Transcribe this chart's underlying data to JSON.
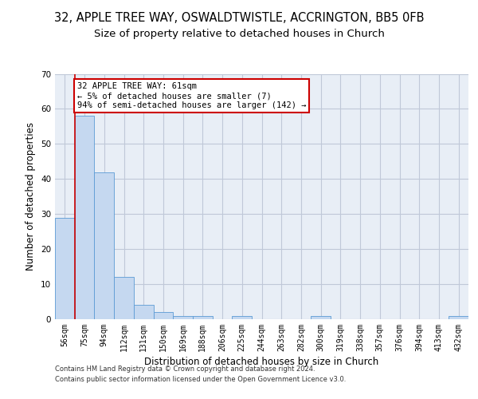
{
  "title1": "32, APPLE TREE WAY, OSWALDTWISTLE, ACCRINGTON, BB5 0FB",
  "title2": "Size of property relative to detached houses in Church",
  "xlabel": "Distribution of detached houses by size in Church",
  "ylabel": "Number of detached properties",
  "categories": [
    "56sqm",
    "75sqm",
    "94sqm",
    "112sqm",
    "131sqm",
    "150sqm",
    "169sqm",
    "188sqm",
    "206sqm",
    "225sqm",
    "244sqm",
    "263sqm",
    "282sqm",
    "300sqm",
    "319sqm",
    "338sqm",
    "357sqm",
    "376sqm",
    "394sqm",
    "413sqm",
    "432sqm"
  ],
  "values": [
    29,
    58,
    42,
    12,
    4,
    2,
    1,
    1,
    0,
    1,
    0,
    0,
    0,
    1,
    0,
    0,
    0,
    0,
    0,
    0,
    1
  ],
  "bar_color": "#c5d8f0",
  "bar_edge_color": "#5b9bd5",
  "annotation_line1": "32 APPLE TREE WAY: 61sqm",
  "annotation_line2": "← 5% of detached houses are smaller (7)",
  "annotation_line3": "94% of semi-detached houses are larger (142) →",
  "annotation_box_color": "#ffffff",
  "annotation_box_edge": "#cc0000",
  "ref_line_color": "#cc0000",
  "ylim": [
    0,
    70
  ],
  "yticks": [
    0,
    10,
    20,
    30,
    40,
    50,
    60,
    70
  ],
  "grid_color": "#c0c8d8",
  "background_color": "#e8eef6",
  "footer1": "Contains HM Land Registry data © Crown copyright and database right 2024.",
  "footer2": "Contains public sector information licensed under the Open Government Licence v3.0.",
  "title1_fontsize": 10.5,
  "title2_fontsize": 9.5,
  "tick_fontsize": 7,
  "axis_label_fontsize": 8.5,
  "footer_fontsize": 6.0,
  "annotation_fontsize": 7.5
}
